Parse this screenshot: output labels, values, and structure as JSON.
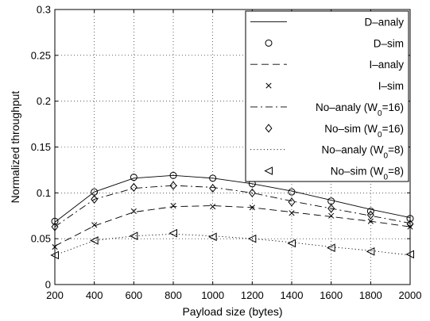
{
  "chart_data": {
    "type": "line",
    "title": "",
    "xlabel": "Payload size (bytes)",
    "ylabel": "Normalized throughput",
    "xlim": [
      200,
      2000
    ],
    "ylim": [
      0,
      0.3
    ],
    "x": [
      200,
      400,
      600,
      800,
      1000,
      1200,
      1400,
      1600,
      1800,
      2000
    ],
    "xticks": [
      "200",
      "400",
      "600",
      "800",
      "1000",
      "1200",
      "1400",
      "1600",
      "1800",
      "2000"
    ],
    "yticks": [
      0,
      0.05,
      0.1,
      0.15,
      0.2,
      0.25,
      0.3
    ],
    "ytick_labels": [
      "0",
      "0.05",
      "0.1",
      "0.15",
      "0.2",
      "0.25",
      "0.3"
    ],
    "grid": true,
    "legend_position": "top-right",
    "series": [
      {
        "name": "D–analy",
        "style": "solid-line",
        "values": [
          0.068,
          0.101,
          0.116,
          0.119,
          0.116,
          0.11,
          0.102,
          0.092,
          0.082,
          0.073
        ]
      },
      {
        "name": "D–sim",
        "style": "circle-marker",
        "values": [
          0.069,
          0.101,
          0.117,
          0.119,
          0.116,
          0.11,
          0.101,
          0.091,
          0.08,
          0.072
        ]
      },
      {
        "name": "I–analy",
        "style": "dashed-line",
        "values": [
          0.042,
          0.064,
          0.079,
          0.085,
          0.086,
          0.084,
          0.079,
          0.074,
          0.069,
          0.063
        ]
      },
      {
        "name": "I–sim",
        "style": "x-marker",
        "values": [
          0.041,
          0.065,
          0.08,
          0.086,
          0.085,
          0.084,
          0.078,
          0.075,
          0.069,
          0.063
        ]
      },
      {
        "name": "No–analy (W0=16)",
        "style": "dashdot-line",
        "values": [
          0.063,
          0.093,
          0.105,
          0.108,
          0.106,
          0.1,
          0.091,
          0.083,
          0.075,
          0.067
        ]
      },
      {
        "name": "No–sim (W0=16)",
        "style": "diamond-marker",
        "values": [
          0.063,
          0.093,
          0.106,
          0.108,
          0.105,
          0.1,
          0.09,
          0.083,
          0.076,
          0.066
        ]
      },
      {
        "name": "No–analy (W0=8)",
        "style": "dotted-line",
        "values": [
          0.032,
          0.048,
          0.053,
          0.055,
          0.053,
          0.05,
          0.046,
          0.041,
          0.037,
          0.032
        ]
      },
      {
        "name": "No–sim (W0=8)",
        "style": "left-triangle-marker",
        "values": [
          0.032,
          0.048,
          0.053,
          0.056,
          0.052,
          0.05,
          0.045,
          0.04,
          0.036,
          0.033
        ]
      }
    ]
  }
}
